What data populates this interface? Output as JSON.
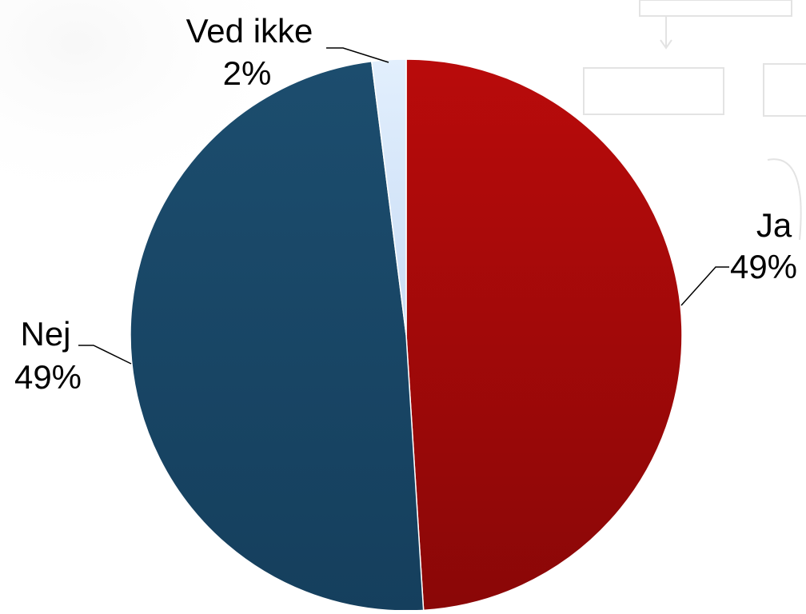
{
  "chart_data": {
    "type": "pie",
    "title": "",
    "slices": [
      {
        "label": "Ja",
        "value": 49,
        "percent_label": "49%",
        "color": "#a80808"
      },
      {
        "label": "Nej",
        "value": 49,
        "percent_label": "49%",
        "color": "#184866"
      },
      {
        "label": "Ved ikke",
        "value": 2,
        "percent_label": "2%",
        "color": "#d4e6fb"
      }
    ],
    "start_angle": "12 o'clock",
    "direction": "clockwise",
    "legend": "none",
    "data_labels": "outside with leader lines"
  }
}
